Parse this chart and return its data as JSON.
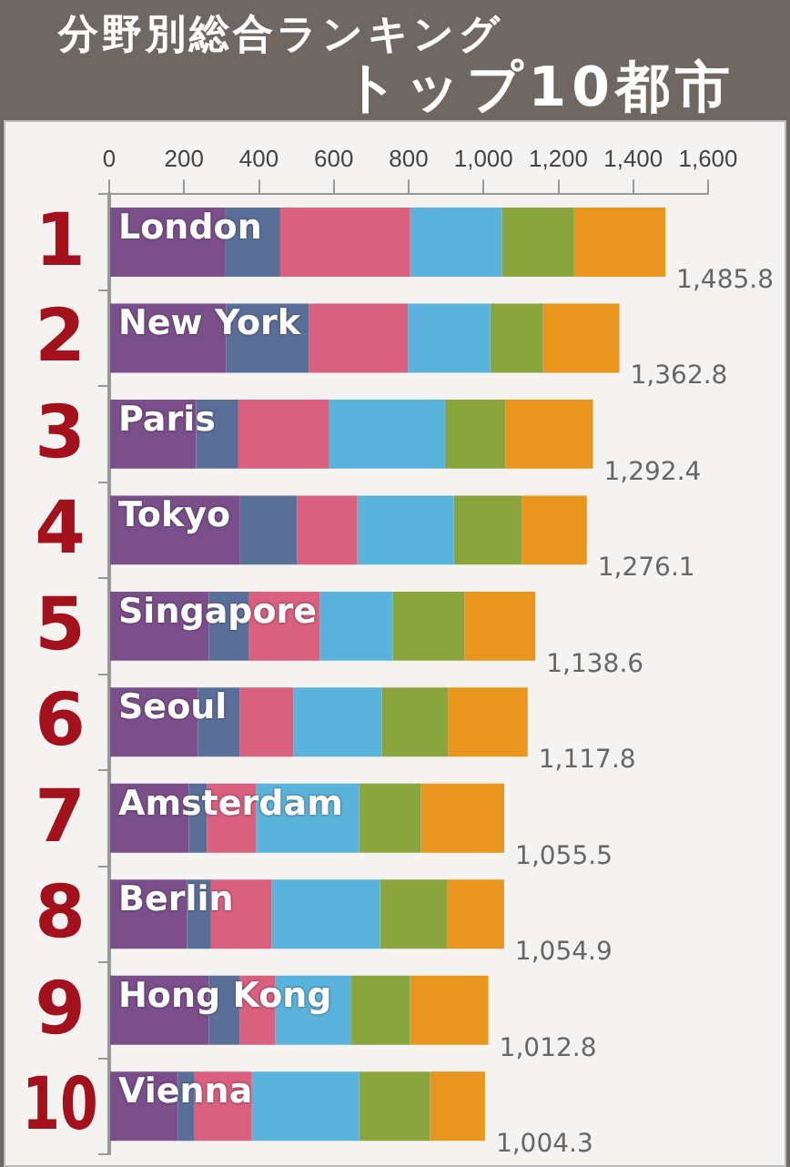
{
  "chart_data": {
    "type": "bar",
    "orientation": "horizontal",
    "stacked": true,
    "title": "分野別総合ランキング",
    "subtitle": "トップ10都市",
    "categories": [
      "London",
      "New York",
      "Paris",
      "Tokyo",
      "Singapore",
      "Seoul",
      "Amsterdam",
      "Berlin",
      "Hong Kong",
      "Vienna"
    ],
    "series": [
      {
        "color": "#7b4f8a",
        "values": [
          309,
          312,
          232,
          348,
          266,
          237,
          213,
          208,
          266,
          184
        ]
      },
      {
        "color": "#5a6f98",
        "values": [
          148,
          222,
          113,
          154,
          106,
          111,
          48,
          64,
          82,
          44
        ]
      },
      {
        "color": "#d9607e",
        "values": [
          347,
          264,
          243,
          161,
          190,
          144,
          132,
          162,
          96,
          153
        ]
      },
      {
        "color": "#5ab3db",
        "values": [
          246,
          220,
          309,
          258,
          196,
          237,
          275,
          290,
          203,
          287
        ]
      },
      {
        "color": "#8aa53e",
        "values": [
          192,
          141,
          162,
          182,
          191,
          176,
          165,
          180,
          157,
          189
        ]
      },
      {
        "color": "#e8961e",
        "values": [
          244,
          204,
          233.4,
          173,
          189.6,
          213,
          222.5,
          151,
          209,
          147
        ]
      }
    ],
    "totals": [
      "1,485.8",
      "1,362.8",
      "1,292.4",
      "1,276.1",
      "1,138.6",
      "1,117.8",
      "1,055.5",
      "1,054.9",
      "1,012.8",
      "1,004.3"
    ],
    "annotations": [
      "1",
      "2",
      "3",
      "4",
      "5",
      "6",
      "7",
      "8",
      "9",
      "10"
    ],
    "xlim": [
      0,
      1600
    ],
    "xticks": [
      0,
      200,
      400,
      600,
      800,
      {
        "value": 1000,
        "label": "1,000"
      },
      {
        "value": 1200,
        "label": "1,200"
      },
      {
        "value": 1400,
        "label": "1,400"
      },
      {
        "value": 1600,
        "label": "1,600"
      }
    ],
    "grid": false,
    "legend": false
  }
}
